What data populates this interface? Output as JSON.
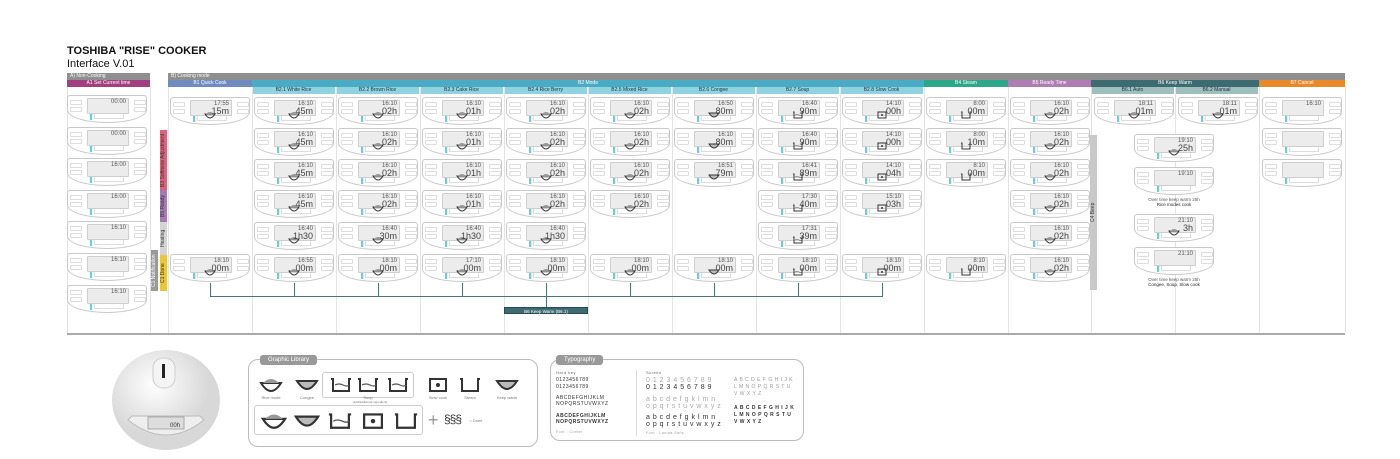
{
  "header": {
    "title": "TOSHIBA \"RISE\" COOKER",
    "subtitle": "Interface V.01"
  },
  "sections": {
    "non_cooking": {
      "label": "A) Non-Cooking",
      "color": "#8f8f8f"
    },
    "cooking_mode": {
      "label": "B) Cooking mode",
      "color": "#8f8f8f"
    },
    "a1": {
      "label": "A1 Set Current time",
      "color": "#a0407f"
    },
    "b1": {
      "label": "B1 Quick Cook",
      "color": "#6f8bbf"
    },
    "b2": {
      "label": "B2 Mode",
      "color": "#4aabc4",
      "sub_color": "#8fd3e0",
      "subs": [
        "B2.1 White Rice",
        "B2.2 Brown Rice",
        "B2.3 Cake Rice",
        "B2.4 Rice Berry",
        "B2.5 Mixed Rice",
        "B2.6 Congee",
        "B2.7 Soup",
        "B2.8 Slow Cook"
      ]
    },
    "b4": {
      "label": "B4 Steam",
      "color": "#2aa889"
    },
    "b5": {
      "label": "B5 Ready Time",
      "color": "#b07cb4"
    },
    "b6": {
      "label": "B6 Keep Warm",
      "color": "#3d6b72",
      "sub_color": "#9fbfbd",
      "subs": [
        "B6.1 Auto",
        "B6.2 Manual"
      ]
    },
    "b7": {
      "label": "B7 Cancel",
      "color": "#e98a2a"
    }
  },
  "side_labels": {
    "softness": {
      "label": "B3 Softness Adjustment",
      "color": "#d9647a"
    },
    "ready_time": {
      "label": "B5 Ready Time",
      "color": "#a47ab0"
    },
    "heating": {
      "label": "Heating",
      "color": "#d4d4d4"
    },
    "done": {
      "label": "C1 Done",
      "color": "#e8c53a"
    },
    "notification": {
      "label": "C1 Notification",
      "color": "#9a9a9a"
    },
    "beep": {
      "label": "C4 Beep",
      "color": "#c9c9c9"
    }
  },
  "columns": [
    {
      "id": "a1",
      "icon": "none",
      "panels": [
        {
          "time": "00:00",
          "value": ""
        },
        {
          "time": "00:00",
          "value": ""
        },
        {
          "time": "16:00",
          "value": ""
        },
        {
          "time": "16:00",
          "value": ""
        },
        {
          "time": "16:10",
          "value": ""
        },
        {
          "time": "16:10",
          "value": ""
        },
        {
          "time": "16:10",
          "value": ""
        }
      ]
    },
    {
      "id": "quick",
      "icon": "rice-bowl",
      "panels": [
        {
          "time": "17:55",
          "value": "15m"
        },
        null,
        null,
        null,
        null,
        {
          "time": "18:10",
          "value": "00m"
        }
      ]
    },
    {
      "id": "white",
      "icon": "rice-bowl",
      "panels": [
        {
          "time": "16:10",
          "value": "45m"
        },
        {
          "time": "16:10",
          "value": "45m"
        },
        {
          "time": "16:10",
          "value": "45m"
        },
        {
          "time": "16:10",
          "value": "45m"
        },
        {
          "time": "16:40",
          "value": "1h30"
        },
        {
          "time": "16:55",
          "value": "00m"
        }
      ]
    },
    {
      "id": "brown",
      "icon": "rice-bowl",
      "panels": [
        {
          "time": "16:10",
          "value": "02h"
        },
        {
          "time": "16:10",
          "value": "02h"
        },
        {
          "time": "16:10",
          "value": "02h"
        },
        {
          "time": "16:10",
          "value": "02h"
        },
        {
          "time": "16:40",
          "value": "30m"
        },
        {
          "time": "18:10",
          "value": "00m"
        }
      ]
    },
    {
      "id": "cake",
      "icon": "rice-bowl",
      "panels": [
        {
          "time": "16:10",
          "value": "01h"
        },
        {
          "time": "16:10",
          "value": "01h"
        },
        {
          "time": "16:10",
          "value": "01h"
        },
        {
          "time": "16:10",
          "value": "01h"
        },
        {
          "time": "16:40",
          "value": "1h30"
        },
        {
          "time": "17:10",
          "value": "00m"
        }
      ]
    },
    {
      "id": "riceberry",
      "icon": "rice-bowl",
      "panels": [
        {
          "time": "16:10",
          "value": "02h"
        },
        {
          "time": "16:10",
          "value": "02h"
        },
        {
          "time": "16:10",
          "value": "02h"
        },
        {
          "time": "16:10",
          "value": "02h"
        },
        {
          "time": "16:40",
          "value": "1h30"
        },
        {
          "time": "18:10",
          "value": "00m"
        }
      ]
    },
    {
      "id": "mixed",
      "icon": "rice-bowl",
      "panels": [
        {
          "time": "16:10",
          "value": "02h"
        },
        {
          "time": "16:10",
          "value": "02h"
        },
        {
          "time": "16:10",
          "value": "02h"
        },
        {
          "time": "16:10",
          "value": "02h"
        },
        null,
        {
          "time": "18:10",
          "value": "00m"
        }
      ]
    },
    {
      "id": "congee",
      "icon": "congee-bowl",
      "panels": [
        {
          "time": "16:50",
          "value": "80m"
        },
        {
          "time": "16:10",
          "value": "80m"
        },
        {
          "time": "16:51",
          "value": "79m"
        },
        null,
        null,
        {
          "time": "18:10",
          "value": "00m"
        }
      ]
    },
    {
      "id": "soup",
      "icon": "soup-pot",
      "panels": [
        {
          "time": "16:40",
          "value": "90m"
        },
        {
          "time": "16:40",
          "value": "90m"
        },
        {
          "time": "16:41",
          "value": "89m"
        },
        {
          "time": "17:30",
          "value": "40m"
        },
        {
          "time": "17:31",
          "value": "39m"
        },
        {
          "time": "18:10",
          "value": "00m"
        }
      ]
    },
    {
      "id": "slowcook",
      "icon": "slow-cook-pot",
      "panels": [
        {
          "time": "14:10",
          "value": "00h"
        },
        {
          "time": "14:10",
          "value": "00h"
        },
        {
          "time": "14:10",
          "value": "04h"
        },
        {
          "time": "15:10",
          "value": "03h"
        },
        null,
        {
          "time": "18:10",
          "value": "00m"
        }
      ]
    },
    {
      "id": "steam",
      "icon": "steam-pot",
      "panels": [
        {
          "time": "8:00",
          "value": "00m"
        },
        {
          "time": "8:00",
          "value": "10m"
        },
        {
          "time": "8:10",
          "value": "00m"
        },
        null,
        null,
        {
          "time": "8:10",
          "value": "00m"
        }
      ]
    },
    {
      "id": "readytime",
      "icon": "rice-bowl",
      "panels": [
        {
          "time": "16:10",
          "value": "02h"
        },
        {
          "time": "16:10",
          "value": "02h"
        },
        {
          "time": "16:10",
          "value": "02h"
        },
        {
          "time": "16:10",
          "value": "02h"
        },
        {
          "time": "16:10",
          "value": "02h"
        },
        {
          "time": "16:10",
          "value": "02h"
        }
      ]
    },
    {
      "id": "kw-auto",
      "icon": "rice-bowl",
      "panels": [
        {
          "time": "18:11",
          "value": "01m"
        }
      ]
    },
    {
      "id": "kw-manual",
      "icon": "rice-bowl",
      "panels": [
        {
          "time": "18:11",
          "value": "01m"
        }
      ]
    },
    {
      "id": "cancel",
      "icon": "none",
      "panels": [
        {
          "time": "16:10",
          "value": ""
        },
        {
          "time": "",
          "value": ""
        },
        {
          "time": "",
          "value": ""
        }
      ]
    }
  ],
  "keep_warm_detail": {
    "panels": [
      {
        "time": "19:10",
        "value": "25h",
        "icon": "rice-bowl"
      },
      {
        "time": "19:10",
        "value": "",
        "icon": "none"
      },
      {
        "time": "21:10",
        "value": "3h",
        "icon": "rice-bowl"
      },
      {
        "time": "21:10",
        "value": "",
        "icon": "none"
      }
    ],
    "caption1": [
      "Over time keep warm 25h",
      "Rice modes cook"
    ],
    "caption2": [
      "Over time keep warm 25h",
      "Congee, Soup, Slow cook"
    ]
  },
  "keep_warm_box": "B6 Keep Warm (B6.1)",
  "graphic_library": {
    "title": "Graphic Library",
    "items": [
      "Rice mode",
      "Congee",
      "Soup",
      "Slow cook",
      "Steam",
      "Keep warm"
    ],
    "soup_note": "(add/additional ingredient)",
    "done_label": "= Done"
  },
  "typography": {
    "title": "Typography",
    "hard_key": {
      "label": "Hard key",
      "digits": "0123456789",
      "upper1": "ABCDEFGHIJKLM",
      "upper2": "NOPQRSTUVWXYZ",
      "font": "Font : Corbel"
    },
    "screen": {
      "label": "Screen",
      "digits": "0 1 2 3 4 5 6 7 8 9",
      "lower1": "a b c d e f g k l m n",
      "lower2": "o p q r s t u v w x y z",
      "upper1": "A B C D E F G H I J K",
      "upper2": "L M N O P Q R S T U",
      "upper3": "V W X Y Z",
      "font": "Font : Lucida Sans"
    }
  },
  "device": {
    "display_value": "00h"
  }
}
